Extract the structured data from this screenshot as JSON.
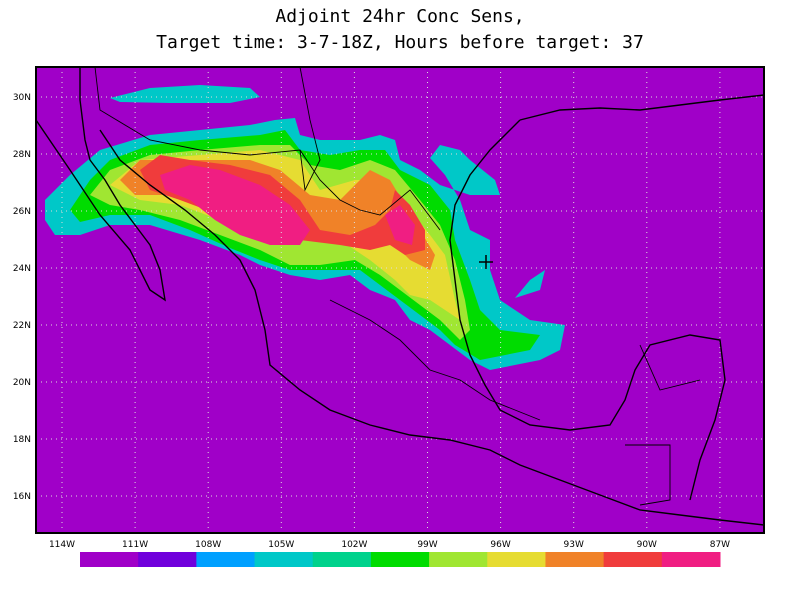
{
  "header": {
    "title": "Adjoint 24hr Conc Sens,",
    "subtitle": "Target time: 3-7-18Z, Hours before target: 37"
  },
  "map": {
    "lat_labels": [
      "30N",
      "28N",
      "26N",
      "24N",
      "22N",
      "20N",
      "18N",
      "16N"
    ],
    "lon_labels": [
      "114W",
      "111W",
      "108W",
      "105W",
      "102W",
      "99W",
      "96W",
      "93W",
      "90W",
      "87W"
    ],
    "colorbar": {
      "colors": [
        "#a000c8",
        "#7000dc",
        "#00a0ff",
        "#00c8c8",
        "#00d28c",
        "#00dc00",
        "#a0e632",
        "#e6dc32",
        "#f08228",
        "#f03c3c",
        "#f01e82"
      ]
    }
  }
}
